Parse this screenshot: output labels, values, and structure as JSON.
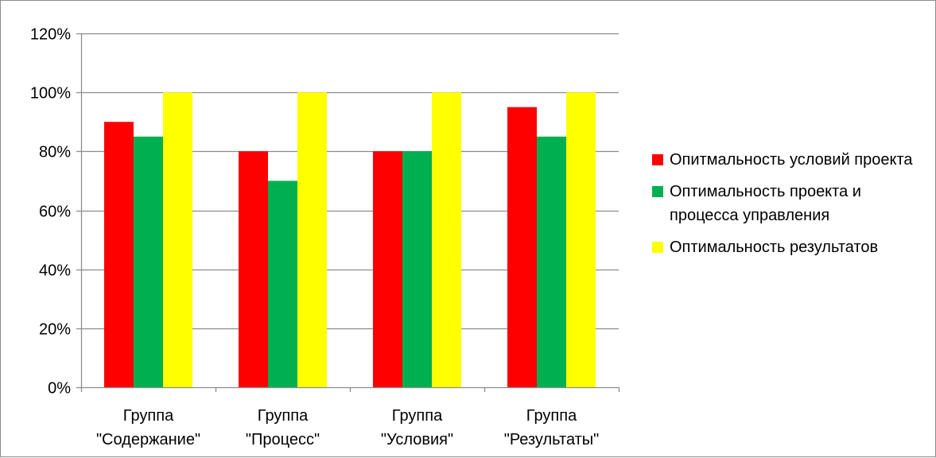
{
  "chart_data": {
    "type": "bar",
    "categories": [
      [
        "Группа",
        "\"Содержание\""
      ],
      [
        "Группа",
        "\"Процесс\""
      ],
      [
        "Группа",
        "\"Условия\""
      ],
      [
        "Группа",
        "\"Результаты\""
      ]
    ],
    "series": [
      {
        "name": "Опитмальность условий проекта",
        "color": "#ff0000",
        "values": [
          90,
          80,
          80,
          95
        ]
      },
      {
        "name": "Оптимальность проекта и процесса управления",
        "color": "#00b050",
        "values": [
          85,
          70,
          80,
          85
        ]
      },
      {
        "name": "Оптимальность результатов",
        "color": "#ffff00",
        "values": [
          100,
          100,
          100,
          100
        ]
      }
    ],
    "ylim": [
      0,
      120
    ],
    "yticks": [
      0,
      20,
      40,
      60,
      80,
      100,
      120
    ],
    "ytick_labels": [
      "0%",
      "20%",
      "40%",
      "60%",
      "80%",
      "100%",
      "120%"
    ],
    "grid": true,
    "legend_position": "right"
  }
}
